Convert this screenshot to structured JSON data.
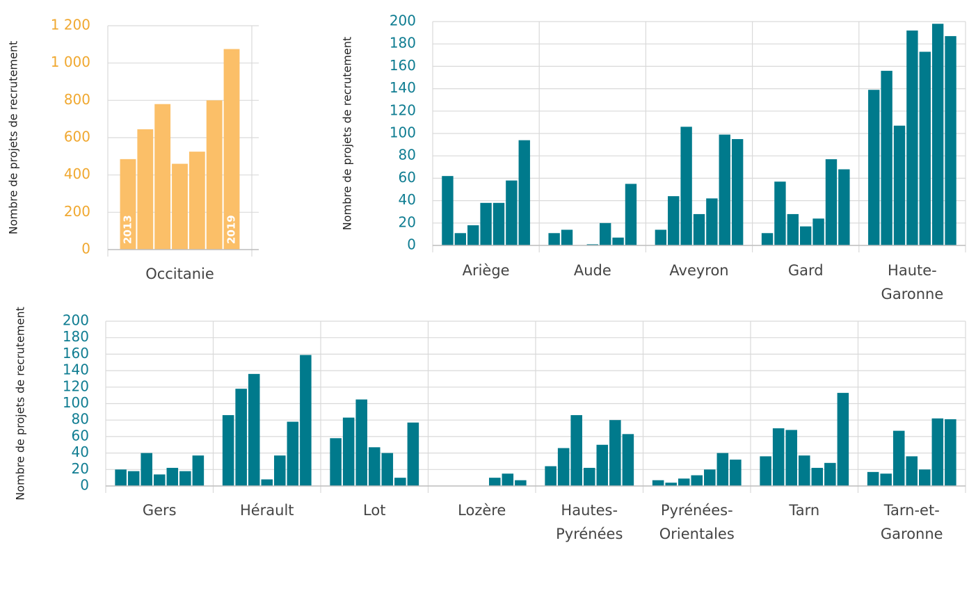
{
  "chart_data": [
    {
      "type": "bar",
      "y_label": "Nombre de projets de recrutement",
      "color": "#fbbf68",
      "tick_color": "#f0a830",
      "ylim": [
        0,
        1200
      ],
      "yticks": [
        0,
        200,
        400,
        600,
        800,
        {
          "value": 1000,
          "label": "1 000"
        },
        {
          "value": 1200,
          "label": "1 200"
        }
      ],
      "grid": true,
      "categories": [
        "2013",
        null,
        null,
        null,
        null,
        null,
        "2019"
      ],
      "groups": [
        {
          "name": "Occitanie",
          "values": [
            485,
            645,
            780,
            460,
            525,
            800,
            1075
          ]
        }
      ]
    },
    {
      "type": "bar",
      "y_label": "Nombre de projets de recrutement",
      "color": "#007a8c",
      "tick_color": "#0e7c91",
      "ylim": [
        0,
        200
      ],
      "yticks": [
        0,
        20,
        40,
        60,
        80,
        100,
        120,
        140,
        160,
        180,
        200
      ],
      "grid": true,
      "groups": [
        {
          "name": "Ariège",
          "values": [
            62,
            11,
            18,
            38,
            38,
            58,
            94
          ]
        },
        {
          "name": "Aude",
          "values": [
            11,
            14,
            0,
            1,
            20,
            7,
            55
          ]
        },
        {
          "name": "Aveyron",
          "values": [
            14,
            44,
            106,
            28,
            42,
            99,
            95
          ]
        },
        {
          "name": "Gard",
          "values": [
            11,
            57,
            28,
            17,
            24,
            77,
            68
          ]
        },
        {
          "name": "Haute-Garonne",
          "values": [
            139,
            156,
            107,
            192,
            173,
            198,
            187
          ]
        }
      ]
    },
    {
      "type": "bar",
      "y_label": "Nombre de projets de recrutement",
      "color": "#007a8c",
      "tick_color": "#0e7c91",
      "ylim": [
        0,
        200
      ],
      "yticks": [
        0,
        20,
        40,
        60,
        80,
        100,
        120,
        140,
        160,
        180,
        200
      ],
      "grid": true,
      "groups": [
        {
          "name": "Gers",
          "values": [
            20,
            18,
            40,
            14,
            22,
            18,
            37
          ]
        },
        {
          "name": "Hérault",
          "values": [
            86,
            118,
            136,
            8,
            37,
            78,
            159
          ]
        },
        {
          "name": "Lot",
          "values": [
            58,
            83,
            105,
            47,
            40,
            10,
            77
          ]
        },
        {
          "name": "Lozère",
          "values": [
            0,
            0,
            0,
            0,
            10,
            15,
            7
          ]
        },
        {
          "name": "Hautes-Pyrénées",
          "values": [
            24,
            46,
            86,
            22,
            50,
            80,
            63
          ]
        },
        {
          "name": "Pyrénées-Orientales",
          "values": [
            7,
            4,
            9,
            13,
            20,
            40,
            32
          ]
        },
        {
          "name": "Tarn",
          "values": [
            36,
            70,
            68,
            37,
            22,
            28,
            113
          ]
        },
        {
          "name": "Tarn-et-Garonne",
          "values": [
            17,
            15,
            67,
            36,
            20,
            82,
            81
          ]
        }
      ]
    }
  ]
}
